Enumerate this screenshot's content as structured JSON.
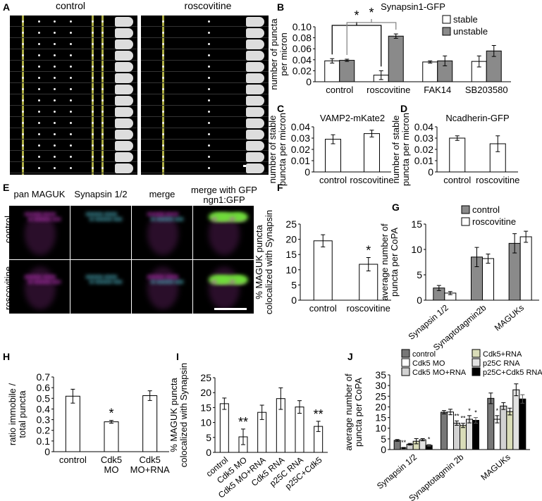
{
  "panels": {
    "A": {
      "letter": "A",
      "titles": [
        "control",
        "roscovitine"
      ]
    },
    "B": {
      "letter": "B"
    },
    "C": {
      "letter": "C"
    },
    "D": {
      "letter": "D"
    },
    "E": {
      "letter": "E",
      "columns": [
        "pan MAGUK",
        "Synapsin 1/2",
        "merge",
        "merge with GFP",
        "ngn1:GFP"
      ],
      "rows": [
        "control",
        "roscovitine"
      ]
    },
    "F": {
      "letter": "F"
    },
    "G": {
      "letter": "G"
    },
    "H": {
      "letter": "H"
    },
    "I": {
      "letter": "I"
    },
    "J": {
      "letter": "J"
    }
  },
  "colors": {
    "white": "#ffffff",
    "gray": "#8a8a8a",
    "control_dark": "#777777",
    "light_gray": "#d2d2d2",
    "olive_light": "#d9dcb8",
    "pale_gray": "#e2e2e2",
    "black": "#000000",
    "yellow": "#e6e65a",
    "magenta": "#d03cd0",
    "cyan": "#5ccfe0",
    "green": "#6fdc3a"
  },
  "chart_data": [
    {
      "id": "B",
      "type": "bar",
      "title": "Synapsin1-GFP",
      "ylabel": [
        "number of puncta",
        "per micron"
      ],
      "ylim": [
        0,
        0.1
      ],
      "yticks": [
        "0",
        "0.02",
        "0.04",
        "0.06",
        "0.08",
        "0.10"
      ],
      "ytick_values": [
        0,
        0.02,
        0.04,
        0.06,
        0.08,
        0.1
      ],
      "categories": [
        "control",
        "roscovitine",
        "FAK14",
        "SB203580"
      ],
      "series": [
        {
          "name": "stable",
          "color": "#ffffff",
          "values": [
            0.038,
            0.012,
            0.036,
            0.037
          ],
          "errors": [
            0.004,
            0.008,
            0.002,
            0.01
          ]
        },
        {
          "name": "unstable",
          "color": "#8a8a8a",
          "values": [
            0.039,
            0.083,
            0.038,
            0.056
          ],
          "errors": [
            0.002,
            0.004,
            0.009,
            0.01
          ]
        }
      ],
      "legend": "top-right",
      "brackets": [
        {
          "text": "*",
          "from": [
            0,
            0
          ],
          "to": [
            1,
            0
          ]
        },
        {
          "text": "*",
          "from": [
            0,
            1
          ],
          "to": [
            1,
            1
          ]
        }
      ]
    },
    {
      "id": "C",
      "type": "bar",
      "title": "VAMP2-mKate2",
      "ylabel": [
        "number of stable",
        "puncta per micron"
      ],
      "ylim": [
        0,
        0.04
      ],
      "yticks": [
        "0",
        "0.01",
        "0.02",
        "0.03",
        "0.04"
      ],
      "ytick_values": [
        0,
        0.01,
        0.02,
        0.03,
        0.04
      ],
      "categories": [
        "control",
        "roscovitine"
      ],
      "series": [
        {
          "name": "",
          "color": "#ffffff",
          "values": [
            0.029,
            0.034
          ],
          "errors": [
            0.004,
            0.003
          ]
        }
      ]
    },
    {
      "id": "D",
      "type": "bar",
      "title": "Ncadherin-GFP",
      "ylabel": [
        "number of stable",
        "puncta per micron"
      ],
      "ylim": [
        0,
        0.04
      ],
      "yticks": [
        "0",
        "0.01",
        "0.02",
        "0.03",
        "0.04"
      ],
      "ytick_values": [
        0,
        0.01,
        0.02,
        0.03,
        0.04
      ],
      "categories": [
        "control",
        "roscovitine"
      ],
      "series": [
        {
          "name": "",
          "color": "#ffffff",
          "values": [
            0.03,
            0.025
          ],
          "errors": [
            0.002,
            0.007
          ]
        }
      ]
    },
    {
      "id": "F",
      "type": "bar",
      "title": "",
      "ylabel": [
        "% MAGUK puncta",
        "colocalized with Synapsin"
      ],
      "ylim": [
        0,
        25
      ],
      "yticks": [
        "0",
        "5",
        "10",
        "15",
        "20",
        "25"
      ],
      "ytick_values": [
        0,
        5,
        10,
        15,
        20,
        25
      ],
      "categories": [
        "control",
        "roscovitine"
      ],
      "series": [
        {
          "name": "",
          "color": "#ffffff",
          "values": [
            19.5,
            11.8
          ],
          "errors": [
            2.0,
            2.2
          ]
        }
      ],
      "annotations": [
        {
          "text": "*",
          "series": 0,
          "category": 1
        }
      ]
    },
    {
      "id": "G",
      "type": "bar",
      "title": "",
      "ylabel": [
        "average number of",
        "puncta per CoPA"
      ],
      "ylim": [
        0,
        15
      ],
      "yticks": [
        "0",
        "5",
        "10",
        "15"
      ],
      "ytick_values": [
        0,
        5,
        10,
        15
      ],
      "categories": [
        "Synapsin 1/2",
        "Synaptotagmin2b",
        "MAGUKs"
      ],
      "series": [
        {
          "name": "control",
          "color": "#8a8a8a",
          "values": [
            2.4,
            8.5,
            11.2
          ],
          "errors": [
            0.5,
            1.9,
            1.9
          ]
        },
        {
          "name": "roscovitine",
          "color": "#ffffff",
          "values": [
            1.4,
            8.2,
            12.5
          ],
          "errors": [
            0.3,
            0.9,
            1.1
          ]
        }
      ],
      "legend": "top-right"
    },
    {
      "id": "H",
      "type": "bar",
      "title": "",
      "ylabel": [
        "ratio immobile /",
        "total puncta"
      ],
      "ylim": [
        0,
        0.7
      ],
      "yticks": [
        "0",
        "0.1",
        "0.2",
        "0.3",
        "0.4",
        "0.5",
        "0.6",
        "0.7"
      ],
      "ytick_values": [
        0,
        0.1,
        0.2,
        0.3,
        0.4,
        0.5,
        0.6,
        0.7
      ],
      "categories": [
        "control",
        "Cdk5\nMO",
        "Cdk5\nMO+RNA"
      ],
      "series": [
        {
          "name": "",
          "color": "#ffffff",
          "values": [
            0.52,
            0.28,
            0.525
          ],
          "errors": [
            0.065,
            0.013,
            0.045
          ]
        }
      ],
      "annotations": [
        {
          "text": "*",
          "series": 0,
          "category": 1
        }
      ]
    },
    {
      "id": "I",
      "type": "bar",
      "title": "",
      "ylabel": [
        "% MAGUK puncta",
        "colocalized with Synapsin"
      ],
      "ylim": [
        0,
        25
      ],
      "yticks": [
        "0",
        "5",
        "10",
        "15",
        "20",
        "25"
      ],
      "ytick_values": [
        0,
        5,
        10,
        15,
        20,
        25
      ],
      "categories": [
        "control",
        "Cdk5 MO",
        "Cdk5 MO+RNA",
        "Cdk5 RNA",
        "p25C RNA",
        "p25C+Cdk5"
      ],
      "series": [
        {
          "name": "",
          "color": "#ffffff",
          "values": [
            16.3,
            5.2,
            13.4,
            18.0,
            15.2,
            8.7
          ],
          "errors": [
            1.9,
            2.6,
            2.4,
            3.6,
            2.1,
            1.7
          ]
        }
      ],
      "annotations": [
        {
          "text": "**",
          "series": 0,
          "category": 1
        },
        {
          "text": "**",
          "series": 0,
          "category": 5
        }
      ]
    },
    {
      "id": "J",
      "type": "bar",
      "title": "",
      "ylabel": [
        "average number of",
        "puncta per CoPA"
      ],
      "ylim": [
        0,
        35
      ],
      "yticks": [
        "0",
        "5",
        "10",
        "15",
        "20",
        "25",
        "30",
        "35"
      ],
      "ytick_values": [
        0,
        5,
        10,
        15,
        20,
        25,
        30,
        35
      ],
      "categories": [
        "Synapsin 1/2",
        "Synaptotagmin 2b",
        "MAGUKs"
      ],
      "series": [
        {
          "name": "control",
          "color": "#777777",
          "values": [
            4.3,
            17.5,
            24.0
          ],
          "errors": [
            0.4,
            0.8,
            2.5
          ]
        },
        {
          "name": "Cdk5 MO",
          "color": "#ffffff",
          "values": [
            0.7,
            17.6,
            14.2
          ],
          "errors": [
            0.3,
            1.3,
            1.7
          ]
        },
        {
          "name": "Cdk5 MO+RNA",
          "color": "#d2d2d2",
          "values": [
            2.5,
            12.4,
            20.4
          ],
          "errors": [
            0.4,
            1.0,
            1.6
          ]
        },
        {
          "name": "Cdk5+RNA",
          "color": "#d9dcb8",
          "values": [
            3.9,
            11.3,
            17.8
          ],
          "errors": [
            1.2,
            1.0,
            1.6
          ]
        },
        {
          "name": "p25C RNA",
          "color": "#e2e2e2",
          "values": [
            4.6,
            14.2,
            28.0
          ],
          "errors": [
            0.5,
            1.7,
            2.8
          ]
        },
        {
          "name": "p25C+Cdk5 RNA",
          "color": "#000000",
          "values": [
            2.0,
            13.7,
            23.7
          ],
          "errors": [
            0.4,
            1.3,
            2.0
          ]
        }
      ],
      "legend": "top",
      "annotations": [
        {
          "text": "**",
          "series": 1,
          "category": 0
        },
        {
          "text": "*",
          "series": 5,
          "category": 0
        },
        {
          "text": "**",
          "series": 2,
          "category": 1
        },
        {
          "text": "**",
          "series": 3,
          "category": 1
        },
        {
          "text": "*",
          "series": 4,
          "category": 1
        },
        {
          "text": "*",
          "series": 5,
          "category": 1
        },
        {
          "text": "*",
          "series": 1,
          "category": 2
        }
      ]
    }
  ]
}
